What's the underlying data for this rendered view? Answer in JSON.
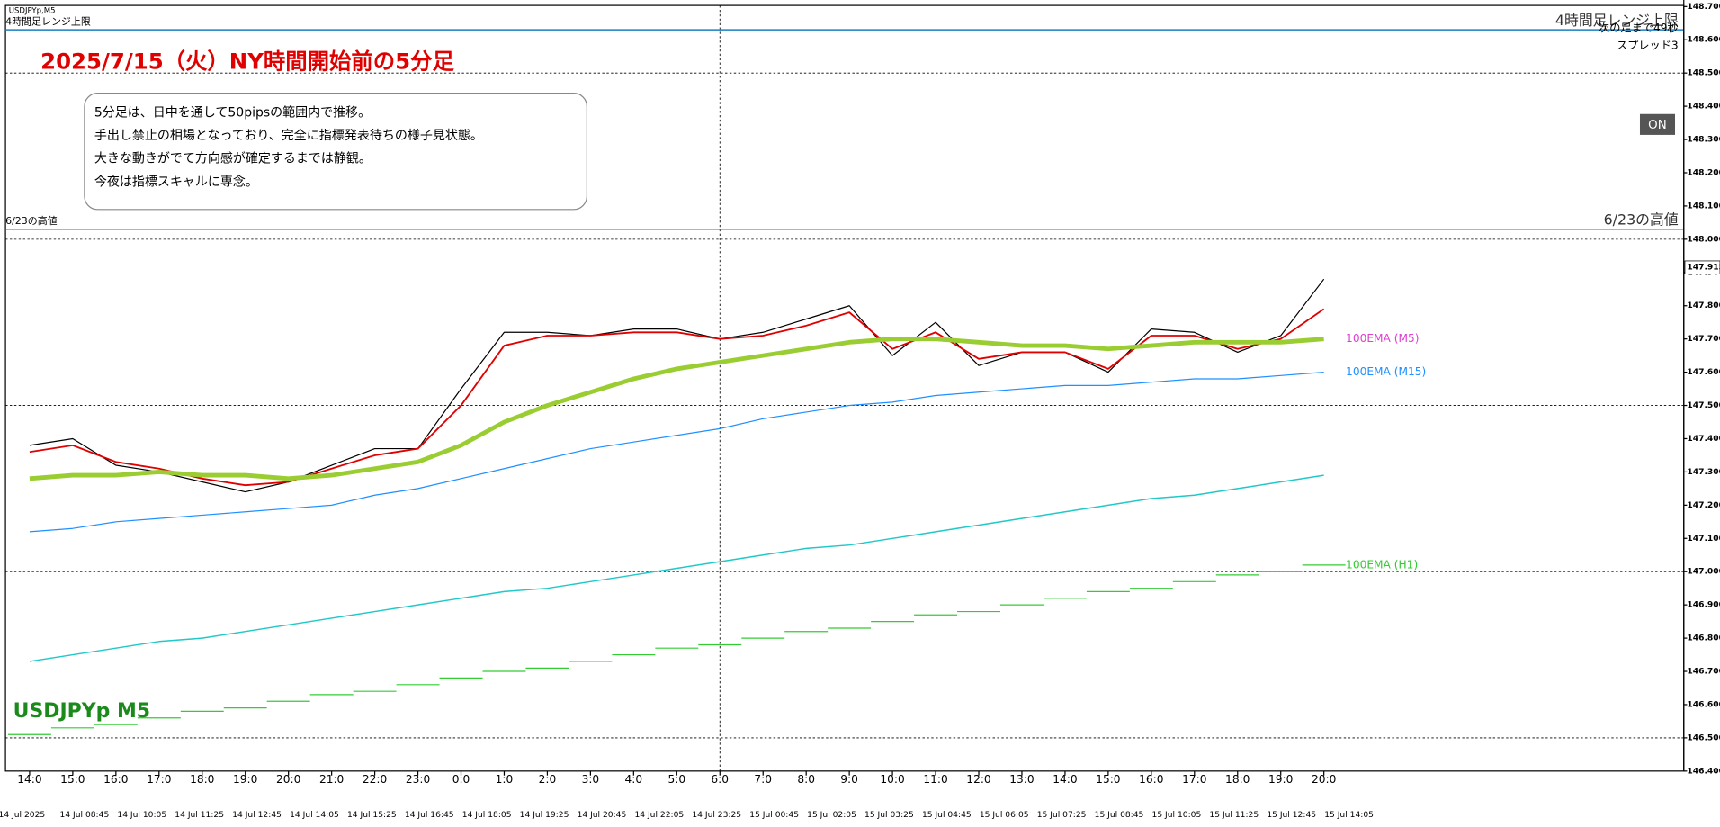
{
  "chart_data": {
    "type": "line",
    "symbol": "USDJPYp,M5",
    "title": "2025/7/15（火）NY時間開始前の5分足",
    "notes": [
      "5分足は、日中を通して50pipsの範囲内で推移。",
      "手出し禁止の相場となっており、完全に指標発表待ちの様子見状態。",
      "大きな動きがでて方向感が確定するまでは静観。",
      "今夜は指標スキャルに専念。"
    ],
    "chart_label": "USDJPYp M5",
    "countdown": "次の足まで49秒",
    "spread": "スプレッド3",
    "button": "ON",
    "levels": [
      {
        "label": "4時間足レンジ上限",
        "value": 148.63,
        "color": "#1a7fc0"
      },
      {
        "label": "6/23の高値",
        "value": 148.03,
        "color": "#1a7fc0"
      }
    ],
    "current_price": {
      "value": 147.915,
      "label": "147.915"
    },
    "categories": [
      "14:0",
      "15:0",
      "16:0",
      "17:0",
      "18:0",
      "19:0",
      "20:0",
      "21:0",
      "22:0",
      "23:0",
      "0:0",
      "1:0",
      "2:0",
      "3:0",
      "4:0",
      "5:0",
      "6:0",
      "7:0",
      "8:0",
      "9:0",
      "10:0",
      "11:0",
      "12:0",
      "13:0",
      "14:0",
      "15:0",
      "16:0",
      "17:0",
      "18:0",
      "19:0",
      "20:0"
    ],
    "date_labels": [
      "14 Jul 2025",
      "14 Jul 08:45",
      "14 Jul 10:05",
      "14 Jul 11:25",
      "14 Jul 12:45",
      "14 Jul 14:05",
      "14 Jul 15:25",
      "14 Jul 16:45",
      "14 Jul 18:05",
      "14 Jul 19:25",
      "14 Jul 20:45",
      "14 Jul 22:05",
      "14 Jul 23:25",
      "15 Jul 00:45",
      "15 Jul 02:05",
      "15 Jul 03:25",
      "15 Jul 04:45",
      "15 Jul 06:05",
      "15 Jul 07:25",
      "15 Jul 08:45",
      "15 Jul 10:05",
      "15 Jul 11:25",
      "15 Jul 12:45",
      "15 Jul 14:05"
    ],
    "series": [
      {
        "color": "#000000",
        "width": 1,
        "values": [
          147.38,
          147.4,
          147.32,
          147.3,
          147.27,
          147.24,
          147.27,
          147.32,
          147.37,
          147.37,
          147.55,
          147.72,
          147.72,
          147.71,
          147.73,
          147.73,
          147.7,
          147.72,
          147.76,
          147.8,
          147.65,
          147.75,
          147.62,
          147.66,
          147.66,
          147.6,
          147.73,
          147.72,
          147.66,
          147.71,
          147.88
        ]
      },
      {
        "color": "#e00000",
        "width": 1.5,
        "values": [
          147.36,
          147.38,
          147.33,
          147.31,
          147.28,
          147.26,
          147.27,
          147.31,
          147.35,
          147.37,
          147.5,
          147.68,
          147.71,
          147.71,
          147.72,
          147.72,
          147.7,
          147.71,
          147.74,
          147.78,
          147.67,
          147.72,
          147.64,
          147.66,
          147.66,
          147.61,
          147.71,
          147.71,
          147.67,
          147.7,
          147.79
        ]
      },
      {
        "name": "100EMA (M5)",
        "color": "#9acd32",
        "label_color": "#e040d0",
        "width": 4,
        "values": [
          147.28,
          147.29,
          147.29,
          147.3,
          147.29,
          147.29,
          147.28,
          147.29,
          147.31,
          147.33,
          147.38,
          147.45,
          147.5,
          147.54,
          147.58,
          147.61,
          147.63,
          147.65,
          147.67,
          147.69,
          147.7,
          147.7,
          147.69,
          147.68,
          147.68,
          147.67,
          147.68,
          147.69,
          147.69,
          147.69,
          147.7
        ]
      },
      {
        "name": "100EMA (M15)",
        "color": "#1e90ff",
        "label_color": "#1e90ff",
        "width": 1,
        "values": [
          147.12,
          147.13,
          147.15,
          147.16,
          147.17,
          147.18,
          147.19,
          147.2,
          147.23,
          147.25,
          147.28,
          147.31,
          147.34,
          147.37,
          147.39,
          147.41,
          147.43,
          147.46,
          147.48,
          147.5,
          147.51,
          147.53,
          147.54,
          147.55,
          147.56,
          147.56,
          147.57,
          147.58,
          147.58,
          147.59,
          147.6
        ]
      },
      {
        "color": "#20c8c8",
        "width": 1.2,
        "values": [
          146.73,
          146.75,
          146.77,
          146.79,
          146.8,
          146.82,
          146.84,
          146.86,
          146.88,
          146.9,
          146.92,
          146.94,
          146.95,
          146.97,
          146.99,
          147.01,
          147.03,
          147.05,
          147.07,
          147.08,
          147.1,
          147.12,
          147.14,
          147.16,
          147.18,
          147.2,
          147.22,
          147.23,
          147.25,
          147.27,
          147.29
        ]
      },
      {
        "name": "100EMA (H1)",
        "color": "#33cc33",
        "label_color": "#33cc33",
        "width": 1,
        "step": true,
        "values": [
          146.51,
          146.53,
          146.54,
          146.56,
          146.58,
          146.59,
          146.61,
          146.63,
          146.64,
          146.66,
          146.68,
          146.7,
          146.71,
          146.73,
          146.75,
          146.77,
          146.78,
          146.8,
          146.82,
          146.83,
          146.85,
          146.87,
          146.88,
          146.9,
          146.92,
          146.94,
          146.95,
          146.97,
          146.99,
          147.0,
          147.02
        ]
      }
    ],
    "ylim": [
      146.4,
      148.7
    ],
    "yticks": [
      {
        "value": 148.7,
        "label": "148.700"
      },
      {
        "value": 148.6,
        "label": "148.600"
      },
      {
        "value": 148.5,
        "label": "148.500"
      },
      {
        "value": 148.4,
        "label": "148.400"
      },
      {
        "value": 148.3,
        "label": "148.300"
      },
      {
        "value": 148.2,
        "label": "148.200"
      },
      {
        "value": 148.1,
        "label": "148.100"
      },
      {
        "value": 148.0,
        "label": "148.000"
      },
      {
        "value": 147.9,
        "label": "147.900"
      },
      {
        "value": 147.8,
        "label": "147.800"
      },
      {
        "value": 147.7,
        "label": "147.700"
      },
      {
        "value": 147.6,
        "label": "147.600"
      },
      {
        "value": 147.5,
        "label": "147.500"
      },
      {
        "value": 147.4,
        "label": "147.400"
      },
      {
        "value": 147.3,
        "label": "147.300"
      },
      {
        "value": 147.2,
        "label": "147.200"
      },
      {
        "value": 147.1,
        "label": "147.100"
      },
      {
        "value": 147.0,
        "label": "147.000"
      },
      {
        "value": 146.9,
        "label": "146.900"
      },
      {
        "value": 146.8,
        "label": "146.800"
      },
      {
        "value": 146.7,
        "label": "146.700"
      },
      {
        "value": 146.6,
        "label": "146.600"
      },
      {
        "value": 146.5,
        "label": "146.500"
      },
      {
        "value": 146.4,
        "label": "146.400"
      }
    ],
    "grid_levels": [
      148.5,
      148.0,
      147.5,
      147.0,
      146.5
    ],
    "vline_category": 16
  }
}
